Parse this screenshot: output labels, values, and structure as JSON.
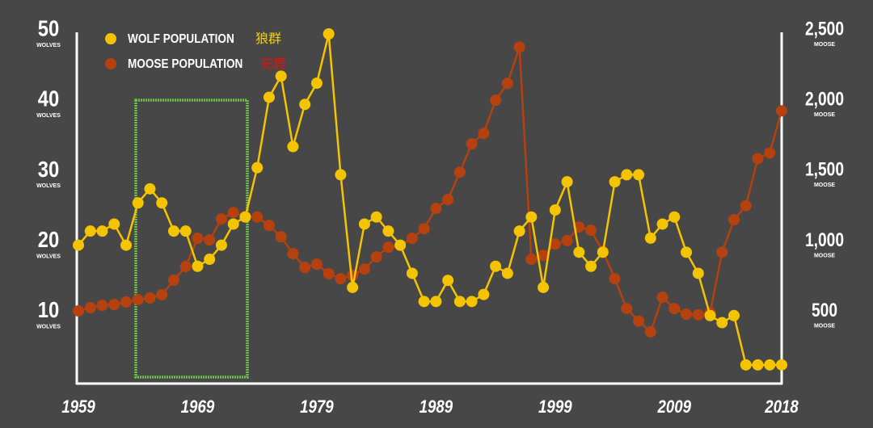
{
  "chart_data": {
    "type": "line",
    "x": [
      1959,
      1960,
      1961,
      1962,
      1963,
      1964,
      1965,
      1966,
      1967,
      1968,
      1969,
      1970,
      1971,
      1972,
      1973,
      1974,
      1975,
      1976,
      1977,
      1978,
      1979,
      1980,
      1981,
      1982,
      1983,
      1984,
      1985,
      1986,
      1987,
      1988,
      1989,
      1990,
      1991,
      1992,
      1993,
      1994,
      1995,
      1996,
      1997,
      1998,
      1999,
      2000,
      2001,
      2002,
      2003,
      2004,
      2005,
      2006,
      2007,
      2008,
      2009,
      2010,
      2011,
      2012,
      2013,
      2014,
      2015,
      2016,
      2017,
      2018
    ],
    "xlim": [
      1959,
      2018
    ],
    "xticks": [
      1959,
      1969,
      1979,
      1989,
      1999,
      2009,
      2018
    ],
    "ylim": [
      0,
      50
    ],
    "yticks": [
      10,
      20,
      30,
      40,
      50
    ],
    "y_unit": "WOLVES",
    "y2lim": [
      0,
      2500
    ],
    "y2ticks": [
      {
        "value": 500,
        "label": "500"
      },
      {
        "value": 1000,
        "label": "1,000"
      },
      {
        "value": 1500,
        "label": "1,500"
      },
      {
        "value": 2000,
        "label": "2,000"
      },
      {
        "value": 2500,
        "label": "2,500"
      }
    ],
    "y2_unit": "MOOSE",
    "series": [
      {
        "name": "WOLF POPULATION",
        "annotation": "狼群",
        "color": "#f5c400",
        "axis": "y",
        "values": [
          20,
          22,
          22,
          23,
          20,
          26,
          28,
          26,
          22,
          22,
          17,
          18,
          20,
          23,
          24,
          31,
          41,
          44,
          34,
          40,
          43,
          50,
          30,
          14,
          23,
          24,
          22,
          20,
          16,
          12,
          12,
          15,
          12,
          12,
          13,
          17,
          16,
          22,
          24,
          14,
          25,
          29,
          19,
          17,
          19,
          29,
          30,
          30,
          21,
          23,
          24,
          19,
          16,
          10,
          9,
          10,
          3,
          3,
          3,
          3
        ]
      },
      {
        "name": "MOOSE POPULATION",
        "annotation": "驼鹿",
        "color": "#b5410f",
        "axis": "y2",
        "values": [
          533,
          556,
          573,
          579,
          596,
          613,
          625,
          648,
          751,
          848,
          1049,
          1037,
          1186,
          1232,
          1204,
          1200,
          1140,
          1060,
          940,
          842,
          865,
          797,
          762,
          785,
          831,
          917,
          986,
          997,
          1049,
          1117,
          1261,
          1324,
          1519,
          1720,
          1794,
          2029,
          2149,
          2407,
          900,
          928,
          1008,
          1032,
          1129,
          1106,
          957,
          762,
          550,
          461,
          384,
          630,
          550,
          510,
          505,
          520,
          950,
          1180,
          1280,
          1615,
          1655,
          1954
        ]
      }
    ]
  }
}
